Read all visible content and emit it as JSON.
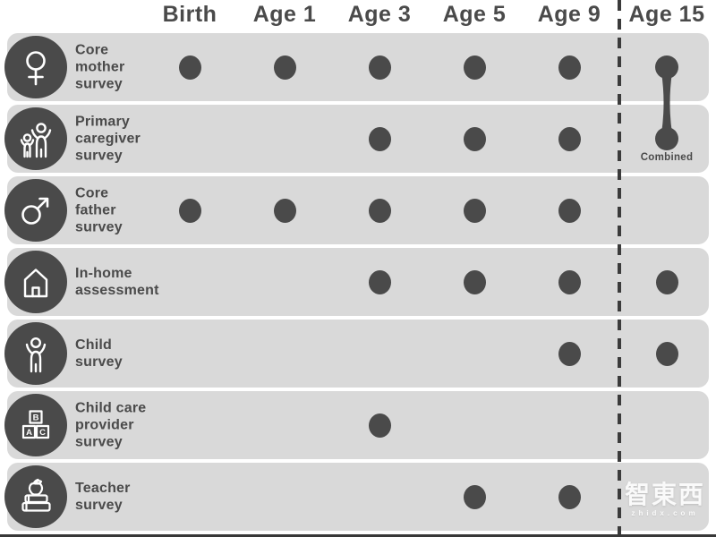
{
  "header": {
    "columns": [
      "Birth",
      "Age 1",
      "Age 3",
      "Age 5",
      "Age 9",
      "Age 15"
    ]
  },
  "rows": [
    {
      "label": "Core\nmother\nsurvey",
      "icon": "female-icon",
      "marks": [
        "dot",
        "dot",
        "dot",
        "dot",
        "dot",
        "combined"
      ]
    },
    {
      "label": "Primary\ncaregiver\nsurvey",
      "icon": "caregiver-icon",
      "marks": [
        "",
        "",
        "dot",
        "dot",
        "dot",
        "combined"
      ]
    },
    {
      "label": "Core\nfather\nsurvey",
      "icon": "male-icon",
      "marks": [
        "dot",
        "dot",
        "dot",
        "dot",
        "dot",
        ""
      ]
    },
    {
      "label": "In-home\nassessment",
      "icon": "home-icon",
      "marks": [
        "",
        "",
        "dot",
        "dot",
        "dot",
        "dot"
      ]
    },
    {
      "label": "Child\nsurvey",
      "icon": "child-icon",
      "marks": [
        "",
        "",
        "",
        "",
        "dot",
        "dot"
      ]
    },
    {
      "label": "Child care\nprovider\nsurvey",
      "icon": "blocks-icon",
      "marks": [
        "",
        "",
        "dot",
        "",
        "",
        ""
      ]
    },
    {
      "label": "Teacher\nsurvey",
      "icon": "books-icon",
      "marks": [
        "",
        "",
        "",
        "dot",
        "dot",
        ""
      ]
    }
  ],
  "combined": {
    "label": "Combined"
  },
  "blocks_letters": {
    "top": "B",
    "left": "A",
    "right": "C"
  },
  "watermark": {
    "logo": "智東西",
    "site": "zhidx.com"
  },
  "colors": {
    "ink": "#4a4a4a",
    "row_bg": "#d9d9d9",
    "divider": "#3b3b3b"
  }
}
